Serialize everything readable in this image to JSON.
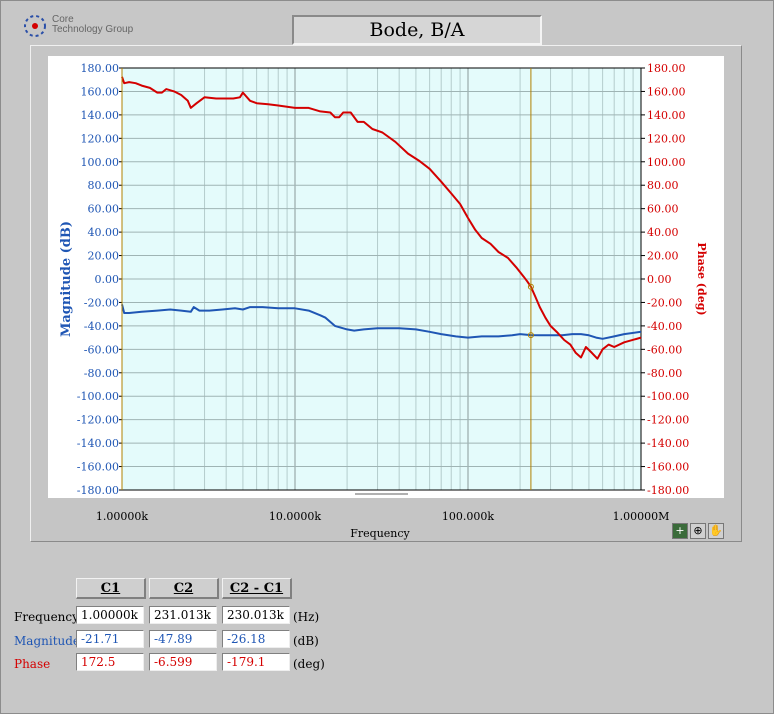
{
  "logo": {
    "line1": "Core",
    "line2": "Technology Group"
  },
  "title": "Bode,  B/A",
  "colors": {
    "magnitude": "#1f56b4",
    "phase": "#d40000",
    "plot_bg": "#e4fbfb",
    "cursor": "#b08000"
  },
  "chart_data": {
    "type": "line",
    "xscale": "log",
    "xlim": [
      1000,
      1000000
    ],
    "xlabel": "Frequency",
    "xticks": [
      "1.00000k",
      "10.0000k",
      "100.000k",
      "1.00000M"
    ],
    "ylabel_left": "Magnitude (dB)",
    "ylabel_right": "Phase (deg)",
    "ylim": [
      -180,
      180
    ],
    "yticks_left": [
      "180.00",
      "160.00",
      "140.00",
      "120.00",
      "100.00",
      "80.00",
      "60.00",
      "40.00",
      "20.00",
      "0.00",
      "-20.00",
      "-40.00",
      "-60.00",
      "-80.00",
      "-100.00",
      "-120.00",
      "-140.00",
      "-160.00",
      "-180.00"
    ],
    "yticks_right": [
      "180.00",
      "160.00",
      "140.00",
      "120.00",
      "100.00",
      "80.00",
      "60.00",
      "40.00",
      "20.00",
      "0.00",
      "-20.00",
      "-40.00",
      "-60.00",
      "-80.00",
      "-100.00",
      "-120.00",
      "-140.00",
      "-160.00",
      "-180.00"
    ],
    "grid": true,
    "cursors": [
      {
        "name": "C1",
        "x": 1000
      },
      {
        "name": "C2",
        "x": 231013
      }
    ],
    "series": [
      {
        "name": "Magnitude",
        "axis": "left",
        "color": "#1f56b4",
        "x": [
          1000,
          1030,
          1100,
          1300,
          1600,
          1900,
          2200,
          2500,
          2600,
          2800,
          3200,
          3800,
          4500,
          5000,
          5500,
          6500,
          8000,
          10000,
          12000,
          14000,
          15000,
          17000,
          20000,
          22000,
          25000,
          30000,
          35000,
          40000,
          50000,
          60000,
          70000,
          85000,
          100000,
          120000,
          150000,
          180000,
          200000,
          231013,
          260000,
          300000,
          350000,
          400000,
          450000,
          500000,
          550000,
          600000,
          700000,
          800000,
          1000000
        ],
        "y": [
          -21.7,
          -29,
          -29,
          -28,
          -27,
          -26,
          -27,
          -28,
          -24,
          -27,
          -27,
          -26,
          -25,
          -26,
          -24,
          -24,
          -25,
          -25,
          -27,
          -31,
          -33,
          -40,
          -43,
          -44,
          -43,
          -42,
          -42,
          -42,
          -43,
          -45,
          -47,
          -49,
          -50,
          -49,
          -49,
          -48,
          -47,
          -47.9,
          -48,
          -48,
          -48,
          -47,
          -47,
          -48,
          -50,
          -51,
          -49,
          -47,
          -45
        ]
      },
      {
        "name": "Phase",
        "axis": "right",
        "color": "#d40000",
        "x": [
          1000,
          1030,
          1100,
          1200,
          1300,
          1450,
          1600,
          1700,
          1800,
          2000,
          2200,
          2400,
          2500,
          2700,
          3000,
          3500,
          4000,
          4400,
          4800,
          5000,
          5500,
          6000,
          7000,
          8000,
          10000,
          12000,
          14000,
          16000,
          17000,
          18000,
          19000,
          21000,
          23000,
          25000,
          28000,
          32000,
          38000,
          45000,
          52000,
          60000,
          70000,
          80000,
          90000,
          100000,
          110000,
          120000,
          135000,
          150000,
          170000,
          190000,
          210000,
          220000,
          231013,
          245000,
          260000,
          280000,
          300000,
          330000,
          360000,
          390000,
          420000,
          450000,
          480000,
          520000,
          560000,
          600000,
          650000,
          700000,
          800000,
          1000000
        ],
        "y": [
          172.5,
          167,
          168,
          167,
          165,
          163,
          159,
          159,
          162,
          160,
          157,
          152,
          146,
          150,
          155,
          154,
          154,
          154,
          155,
          159,
          152,
          150,
          149,
          148,
          146,
          146,
          143,
          142,
          138,
          138,
          142,
          142,
          134,
          134,
          128,
          125,
          117,
          107,
          101,
          94,
          83,
          73,
          64,
          52,
          42,
          35,
          30,
          23,
          18,
          10,
          2,
          -2,
          -6.6,
          -15,
          -24,
          -33,
          -40,
          -46,
          -52,
          -56,
          -63,
          -67,
          -58,
          -63,
          -68,
          -60,
          -56,
          -58,
          -54,
          -50
        ]
      }
    ]
  },
  "toolbar": {
    "cursor_tool": "+",
    "zoom_tool": "⊕",
    "pan_tool": "✋"
  },
  "cursor_table": {
    "headers": [
      "C1",
      "C2",
      "C2 - C1"
    ],
    "rows": [
      {
        "label": "Frequency",
        "values": [
          "1.00000k",
          "231.013k",
          "230.013k"
        ],
        "unit": "(Hz)",
        "color": "#000000"
      },
      {
        "label": "Magnitude",
        "values": [
          "-21.71",
          "-47.89",
          "-26.18"
        ],
        "unit": "(dB)",
        "color": "#1f56b4"
      },
      {
        "label": "Phase",
        "values": [
          "172.5",
          "-6.599",
          "-179.1"
        ],
        "unit": "(deg)",
        "color": "#d40000"
      }
    ]
  }
}
